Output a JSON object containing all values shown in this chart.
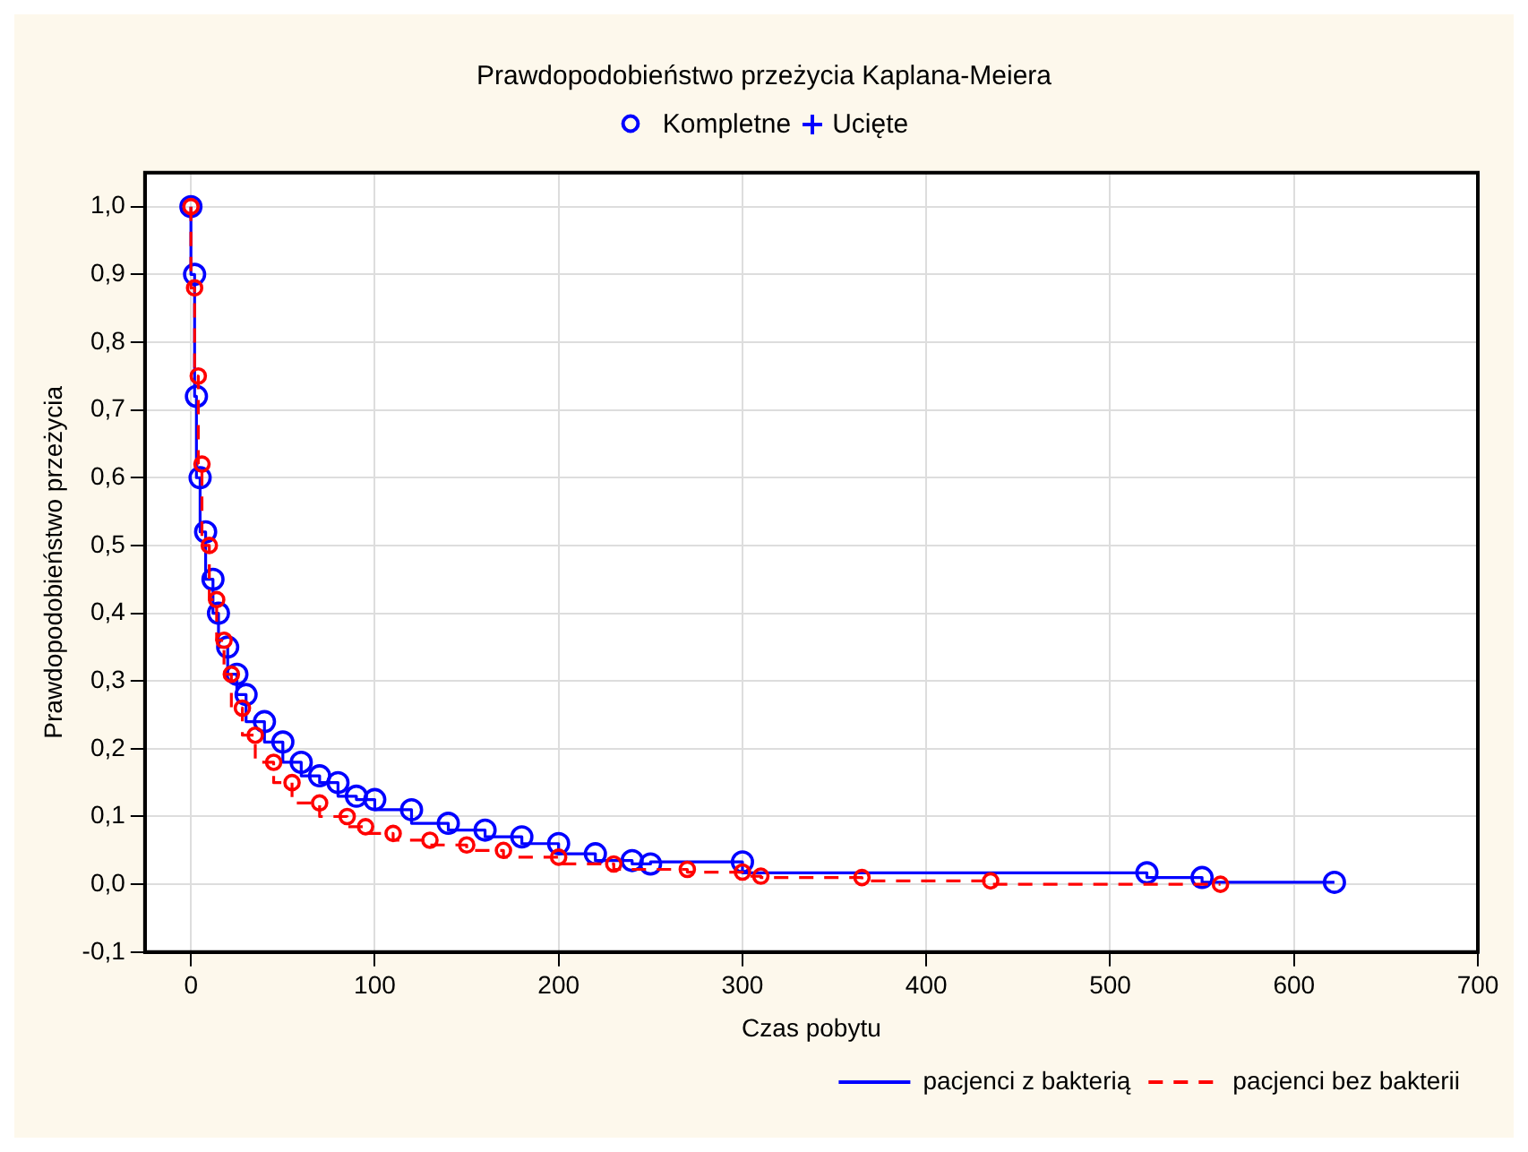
{
  "chart_data": {
    "type": "step",
    "title": "Prawdopodobieństwo przeżycia Kaplana-Meiera",
    "annotations": [
      "Kompletne",
      "Ucięte"
    ],
    "xlabel": "Czas pobytu",
    "ylabel": "Prawdopodobieństwo przeżycia",
    "xlim": [
      -25,
      700
    ],
    "xticks": [
      0,
      100,
      200,
      300,
      400,
      500,
      600,
      700
    ],
    "ylim": [
      -0.1,
      1.05
    ],
    "yticks": [
      {
        "value": -0.1,
        "label": "-0,1"
      },
      {
        "value": 0,
        "label": "0,0"
      },
      {
        "value": 0.1,
        "label": "0,1"
      },
      {
        "value": 0.2,
        "label": "0,2"
      },
      {
        "value": 0.3,
        "label": "0,3"
      },
      {
        "value": 0.4,
        "label": "0,4"
      },
      {
        "value": 0.5,
        "label": "0,5"
      },
      {
        "value": 0.6,
        "label": "0,6"
      },
      {
        "value": 0.7,
        "label": "0,7"
      },
      {
        "value": 0.8,
        "label": "0,8"
      },
      {
        "value": 0.9,
        "label": "0,9"
      },
      {
        "value": 1,
        "label": "1,0"
      }
    ],
    "grid": true,
    "legend": "bottom right",
    "marker": "circle",
    "series": [
      {
        "name": "pacjenci z bakterią",
        "color": "#0000ff",
        "line_style": "solid",
        "x": [
          0,
          2,
          3,
          5,
          8,
          12,
          15,
          20,
          25,
          30,
          40,
          50,
          60,
          70,
          80,
          90,
          100,
          120,
          140,
          160,
          180,
          200,
          220,
          240,
          250,
          300,
          520,
          550,
          622
        ],
        "values": [
          1.0,
          0.9,
          0.72,
          0.6,
          0.52,
          0.45,
          0.4,
          0.35,
          0.31,
          0.28,
          0.24,
          0.21,
          0.18,
          0.16,
          0.15,
          0.13,
          0.125,
          0.11,
          0.09,
          0.08,
          0.07,
          0.06,
          0.045,
          0.035,
          0.03,
          0.033,
          0.017,
          0.01,
          0.003
        ]
      },
      {
        "name": "pacjenci bez bakterii",
        "color": "#ff0000",
        "line_style": "dashed",
        "x": [
          0,
          2,
          4,
          6,
          10,
          14,
          18,
          22,
          28,
          35,
          45,
          55,
          70,
          85,
          95,
          110,
          130,
          150,
          170,
          200,
          230,
          270,
          300,
          310,
          365,
          435,
          560
        ],
        "values": [
          1.0,
          0.88,
          0.75,
          0.62,
          0.5,
          0.42,
          0.36,
          0.31,
          0.26,
          0.22,
          0.18,
          0.15,
          0.12,
          0.1,
          0.085,
          0.075,
          0.065,
          0.058,
          0.05,
          0.04,
          0.03,
          0.022,
          0.018,
          0.012,
          0.01,
          0.005,
          0.0
        ]
      }
    ]
  }
}
